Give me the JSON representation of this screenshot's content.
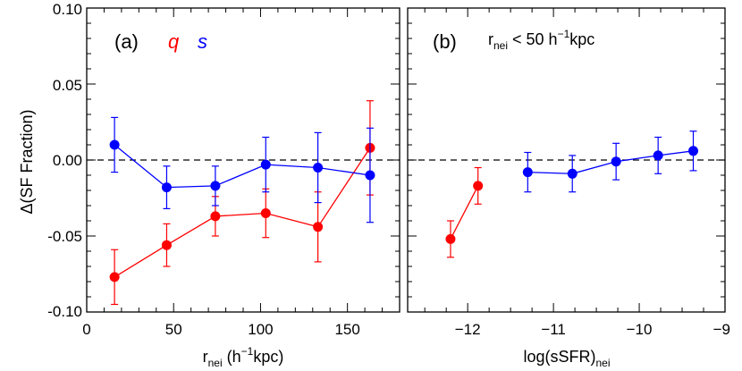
{
  "colors": {
    "q": "#ff0000",
    "s": "#0000ff",
    "axis": "#000000",
    "zero_line": "#000000"
  },
  "y_axis": {
    "label_prefix": "Δ",
    "label_main": "(SF Fraction)",
    "ticks": [
      "0.10",
      "0.05",
      "0.00",
      "-0.05",
      "-0.10"
    ],
    "tick_values": [
      0.1,
      0.05,
      0.0,
      -0.05,
      -0.1
    ],
    "ylim": [
      -0.1,
      0.1
    ]
  },
  "chart_data": [
    {
      "type": "line",
      "panel": "(a)",
      "xlabel": {
        "main": "r",
        "sub": "nei",
        "unit_open": " (h",
        "unit_sup": "−1",
        "unit_close": "kpc)"
      },
      "xlim": [
        0,
        180
      ],
      "x_ticks": [
        0,
        50,
        100,
        150
      ],
      "x_tick_labels": [
        "0",
        "50",
        "100",
        "150"
      ],
      "legend": {
        "q_label": "q",
        "s_label": "s"
      },
      "series": [
        {
          "name": "q",
          "x": [
            16,
            46,
            74,
            103,
            133,
            163
          ],
          "y": [
            -0.077,
            -0.056,
            -0.037,
            -0.035,
            -0.044,
            0.008
          ],
          "err": [
            0.018,
            0.014,
            0.013,
            0.016,
            0.023,
            0.031
          ]
        },
        {
          "name": "s",
          "x": [
            16,
            46,
            74,
            103,
            133,
            163
          ],
          "y": [
            0.01,
            -0.018,
            -0.017,
            -0.003,
            -0.005,
            -0.01
          ],
          "err": [
            0.018,
            0.014,
            0.013,
            0.018,
            0.023,
            0.031
          ]
        }
      ]
    },
    {
      "type": "line",
      "panel": "(b)",
      "annotation": {
        "r": "r",
        "sub": "nei",
        "rest": " < 50 h",
        "sup": "−1",
        "tail": "kpc"
      },
      "xlabel": {
        "main": "log(sSFR)",
        "sub": "nei"
      },
      "xlim": [
        -12.7,
        -9.0
      ],
      "x_ticks": [
        -12,
        -11,
        -10,
        -9
      ],
      "x_tick_labels": [
        "−12",
        "−11",
        "−10",
        "−9"
      ],
      "series": [
        {
          "name": "q",
          "x": [
            -12.2,
            -11.88
          ],
          "y": [
            -0.052,
            -0.017
          ],
          "err": [
            0.012,
            0.012
          ]
        },
        {
          "name": "s",
          "x": [
            -11.3,
            -10.78,
            -10.27,
            -9.78,
            -9.37
          ],
          "y": [
            -0.008,
            -0.009,
            -0.001,
            0.003,
            0.006
          ],
          "err": [
            0.013,
            0.012,
            0.012,
            0.012,
            0.013
          ]
        }
      ]
    }
  ]
}
